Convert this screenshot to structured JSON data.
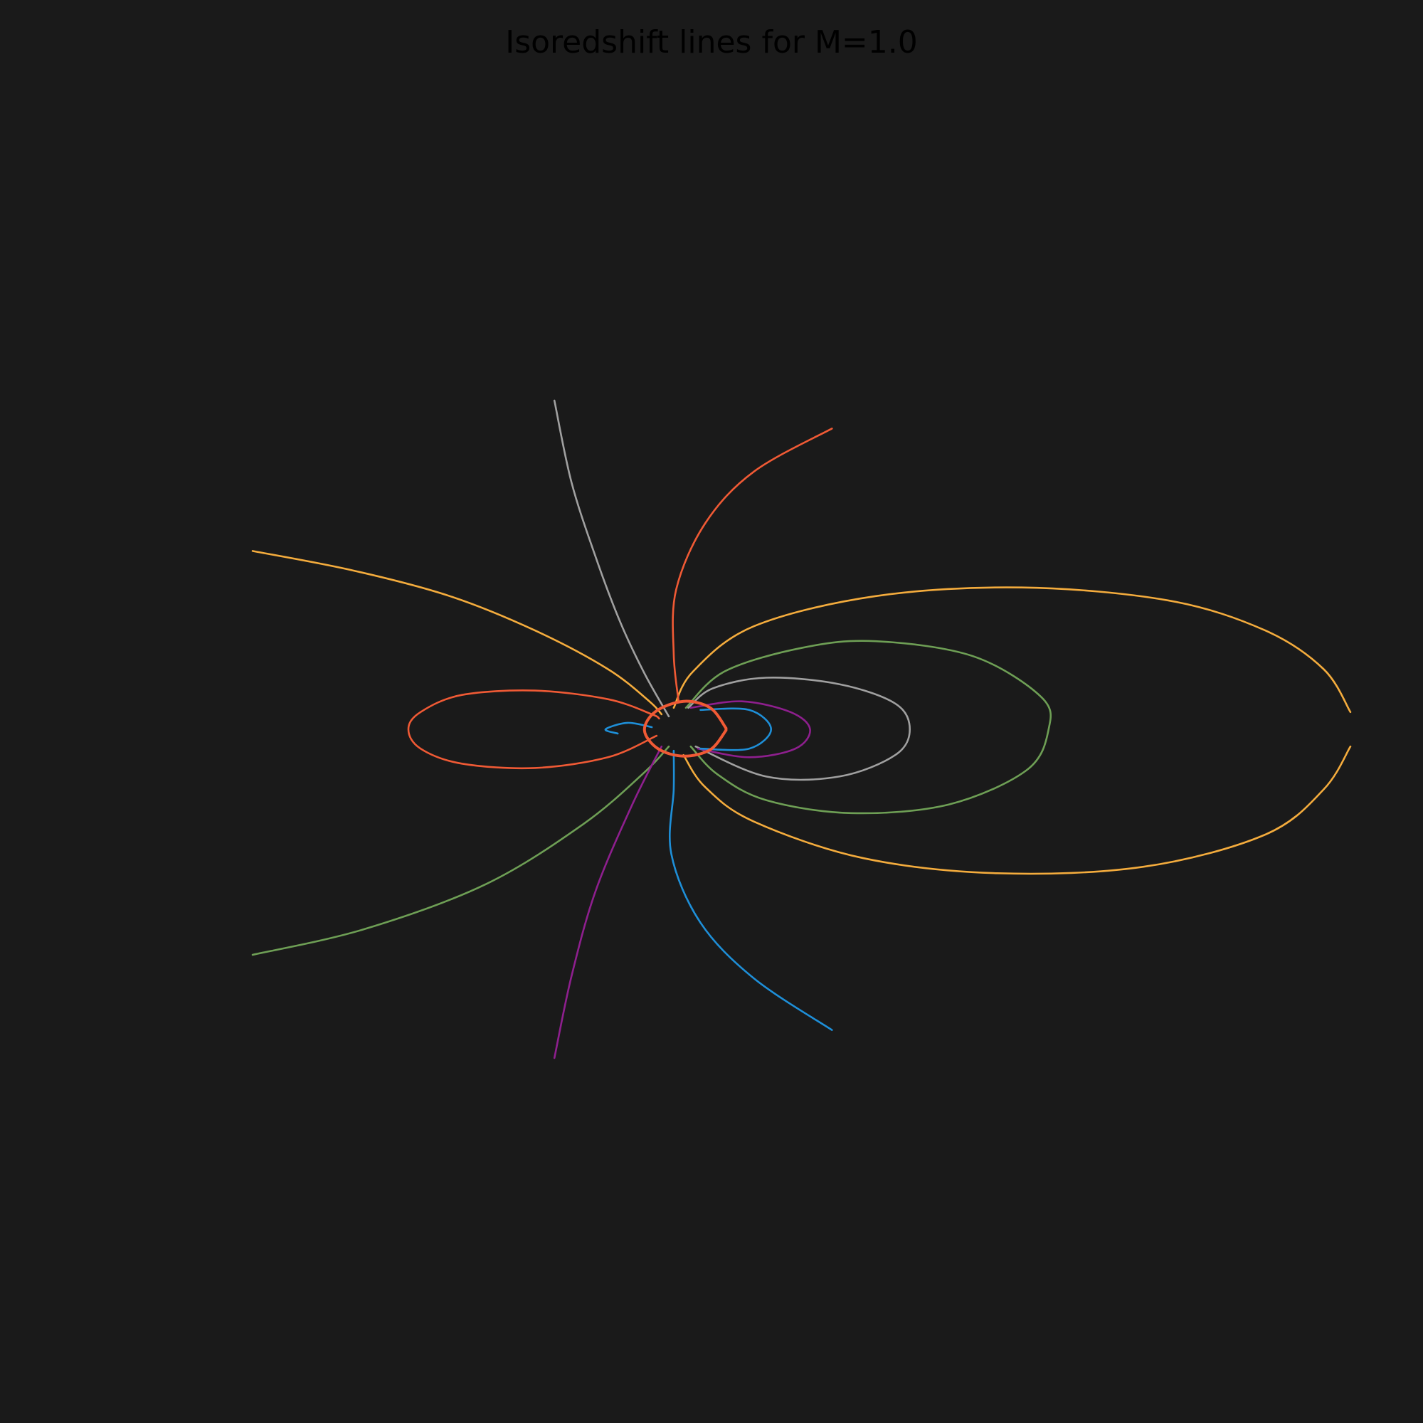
{
  "chart_data": {
    "type": "line",
    "title": "Isoredshift lines for M=1.0",
    "xlabel": "",
    "ylabel": "",
    "grid": false,
    "axes_visible": false,
    "legend": "none",
    "colors": {
      "background": "#1a1a1a",
      "title": "#000000",
      "horizon": "#f05a35"
    },
    "horizon": {
      "name": "horizon",
      "color": "#f05a35",
      "points": [
        [
          1.85,
          0.05
        ],
        [
          1.2,
          1.0
        ],
        [
          0.1,
          1.3
        ],
        [
          -1.05,
          0.82
        ],
        [
          -1.5,
          -0.05
        ],
        [
          -0.95,
          -0.9
        ],
        [
          0.1,
          -1.25
        ],
        [
          1.2,
          -0.95
        ],
        [
          1.85,
          -0.05
        ]
      ]
    },
    "series": [
      {
        "color": "#f4ac3d",
        "points": [
          [
            -17.6,
            8.3
          ],
          [
            -13.5,
            7.4
          ],
          [
            -9.5,
            6.2
          ],
          [
            -6.0,
            4.6
          ],
          [
            -3.0,
            2.8
          ],
          [
            -1.3,
            1.3
          ],
          [
            -0.8,
            0.7
          ]
        ]
      },
      {
        "color": "#f4ac3d",
        "points": [
          [
            -0.3,
            1.0
          ],
          [
            0.5,
            2.7
          ],
          [
            3.0,
            4.8
          ],
          [
            8.0,
            6.2
          ],
          [
            14.0,
            6.6
          ],
          [
            20.0,
            6.0
          ],
          [
            24.0,
            4.6
          ],
          [
            26.4,
            2.8
          ],
          [
            27.5,
            0.8
          ]
        ]
      },
      {
        "color": "#f4ac3d",
        "points": [
          [
            27.5,
            -0.8
          ],
          [
            26.4,
            -2.8
          ],
          [
            24.0,
            -4.9
          ],
          [
            19.0,
            -6.4
          ],
          [
            13.0,
            -6.7
          ],
          [
            7.5,
            -6.0
          ],
          [
            3.0,
            -4.3
          ],
          [
            1.0,
            -2.7
          ],
          [
            0.1,
            -1.2
          ]
        ]
      },
      {
        "color": "#6e9f55",
        "points": [
          [
            -17.6,
            -10.5
          ],
          [
            -13.0,
            -9.3
          ],
          [
            -8.0,
            -7.2
          ],
          [
            -4.0,
            -4.4
          ],
          [
            -1.5,
            -2.0
          ],
          [
            -0.5,
            -0.8
          ]
        ]
      },
      {
        "color": "#6e9f55",
        "points": [
          [
            0.2,
            1.0
          ],
          [
            1.8,
            2.7
          ],
          [
            5.0,
            3.8
          ],
          [
            8.0,
            4.1
          ],
          [
            12.0,
            3.4
          ],
          [
            14.8,
            1.5
          ],
          [
            15.1,
            0.0
          ],
          [
            14.2,
            -1.9
          ],
          [
            11.0,
            -3.5
          ],
          [
            7.0,
            -3.9
          ],
          [
            3.5,
            -3.3
          ],
          [
            1.5,
            -2.1
          ],
          [
            0.4,
            -0.8
          ]
        ]
      },
      {
        "color": "#a0a0a0",
        "points": [
          [
            -5.2,
            15.3
          ],
          [
            -4.5,
            11.5
          ],
          [
            -3.5,
            8.0
          ],
          [
            -2.5,
            5.0
          ],
          [
            -1.5,
            2.6
          ],
          [
            -0.5,
            0.6
          ]
        ]
      },
      {
        "color": "#a0a0a0",
        "points": [
          [
            0.3,
            1.0
          ],
          [
            1.3,
            1.9
          ],
          [
            3.5,
            2.4
          ],
          [
            6.5,
            2.1
          ],
          [
            8.8,
            1.2
          ],
          [
            9.4,
            0.0
          ],
          [
            8.8,
            -1.2
          ],
          [
            6.5,
            -2.2
          ],
          [
            3.5,
            -2.2
          ],
          [
            0.6,
            -0.8
          ]
        ]
      },
      {
        "color": "#f05a35",
        "points": [
          [
            6.2,
            14.0
          ],
          [
            3.0,
            12.0
          ],
          [
            1.0,
            9.6
          ],
          [
            -0.2,
            6.5
          ],
          [
            -0.3,
            3.5
          ],
          [
            -0.1,
            1.3
          ]
        ]
      },
      {
        "color": "#f05a35",
        "points": [
          [
            -1.0,
            -0.3
          ],
          [
            -3.0,
            -1.3
          ],
          [
            -6.0,
            -1.8
          ],
          [
            -9.0,
            -1.6
          ],
          [
            -10.7,
            -0.9
          ],
          [
            -11.2,
            0.0
          ],
          [
            -10.7,
            0.8
          ],
          [
            -9.0,
            1.6
          ],
          [
            -6.0,
            1.8
          ],
          [
            -3.0,
            1.4
          ],
          [
            -1.2,
            0.7
          ],
          [
            -0.9,
            0.5
          ]
        ]
      },
      {
        "color": "#8e1f8e",
        "points": [
          [
            -5.2,
            -15.3
          ],
          [
            -4.5,
            -11.5
          ],
          [
            -3.5,
            -7.5
          ],
          [
            -2.0,
            -3.5
          ],
          [
            -0.8,
            -0.8
          ]
        ]
      },
      {
        "color": "#8e1f8e",
        "points": [
          [
            0.4,
            1.0
          ],
          [
            2.5,
            1.3
          ],
          [
            4.5,
            0.8
          ],
          [
            5.3,
            0.0
          ],
          [
            4.7,
            -0.9
          ],
          [
            2.8,
            -1.3
          ],
          [
            0.7,
            -0.9
          ]
        ]
      },
      {
        "color": "#1e8fd8",
        "points": [
          [
            6.2,
            -14.0
          ],
          [
            3.0,
            -11.6
          ],
          [
            0.8,
            -9.0
          ],
          [
            -0.4,
            -5.8
          ],
          [
            -0.3,
            -2.8
          ],
          [
            -0.3,
            -1.0
          ]
        ]
      },
      {
        "color": "#1e8fd8",
        "points": [
          [
            0.8,
            0.9
          ],
          [
            2.8,
            0.9
          ],
          [
            3.7,
            0.0
          ],
          [
            2.8,
            -0.9
          ],
          [
            0.8,
            -0.9
          ]
        ]
      },
      {
        "color": "#1e8fd8",
        "points": [
          [
            -1.2,
            0.1
          ],
          [
            -2.2,
            0.3
          ],
          [
            -3.1,
            0.0
          ],
          [
            -2.6,
            -0.2
          ]
        ]
      }
    ],
    "xlim": [
      -17.6,
      27.5
    ],
    "ylim": [
      -15.4,
      15.4
    ]
  }
}
